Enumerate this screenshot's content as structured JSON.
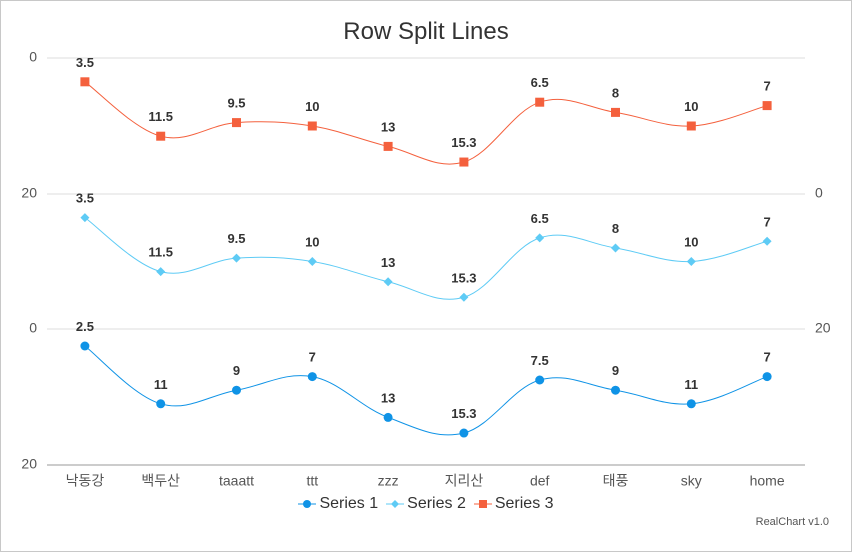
{
  "chart_data": {
    "type": "line",
    "title": "Row Split Lines",
    "credit": "RealChart v1.0",
    "categories": [
      "낙동강",
      "백두산",
      "taaatt",
      "ttt",
      "zzz",
      "지리산",
      "def",
      "태풍",
      "sky",
      "home"
    ],
    "series": [
      {
        "name": "Series 1",
        "values": [
          2.5,
          11,
          9,
          7,
          13,
          15.3,
          7.5,
          9,
          11,
          7
        ],
        "color": "#0f93e6",
        "marker": "circle",
        "axis": "left",
        "pane": "bottom"
      },
      {
        "name": "Series 2",
        "values": [
          3.5,
          11.5,
          9.5,
          10,
          13,
          15.3,
          6.5,
          8,
          10,
          7
        ],
        "color": "#5ecbf5",
        "marker": "diamond",
        "axis": "right",
        "pane": "middle"
      },
      {
        "name": "Series 3",
        "values": [
          3.5,
          11.5,
          9.5,
          10,
          13,
          15.3,
          6.5,
          8,
          10,
          7
        ],
        "color": "#f4603d",
        "marker": "square",
        "axis": "left",
        "pane": "top"
      }
    ],
    "y_axes": {
      "left_top": {
        "ticks": [
          "0",
          "20"
        ],
        "range": [
          0,
          20
        ],
        "reversed": true
      },
      "left_bottom": {
        "ticks": [
          "0",
          "20"
        ],
        "range": [
          0,
          20
        ],
        "reversed": true
      },
      "right_middle": {
        "ticks": [
          "0",
          "20"
        ],
        "range": [
          0,
          20
        ],
        "reversed": true
      }
    },
    "legend_position": "bottom",
    "grid": true,
    "smooth": true
  }
}
